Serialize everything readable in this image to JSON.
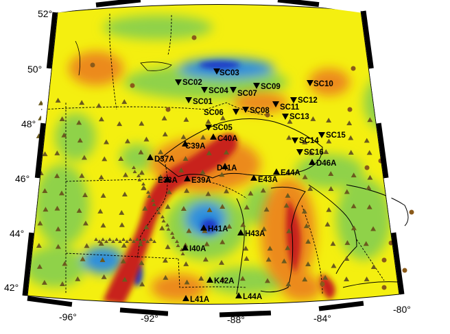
{
  "map": {
    "longitude_ticks": [
      "-96°",
      "-92°",
      "-88°",
      "-84°",
      "-80°"
    ],
    "latitude_ticks": [
      "52°",
      "50°",
      "48°",
      "46°",
      "44°",
      "42°"
    ],
    "colors": {
      "background": "#f4ef10",
      "high": "#c8201e",
      "mid_high": "#ec8a1c",
      "mid_low": "#8fd24a",
      "low": "#2d8fdc",
      "very_low": "#1b3ac8",
      "station_triangle": "#6b5a1e",
      "labeled_station": "#000000",
      "circle_station": "#8a5a1a"
    },
    "labeled_stations": [
      {
        "id": "SC03",
        "marker": "inverted-triangle"
      },
      {
        "id": "SC02",
        "marker": "inverted-triangle"
      },
      {
        "id": "SC04",
        "marker": "inverted-triangle"
      },
      {
        "id": "SC07",
        "marker": "inverted-triangle"
      },
      {
        "id": "SC09",
        "marker": "inverted-triangle"
      },
      {
        "id": "SC10",
        "marker": "inverted-triangle"
      },
      {
        "id": "SC01",
        "marker": "inverted-triangle"
      },
      {
        "id": "SC12",
        "marker": "inverted-triangle"
      },
      {
        "id": "SC11",
        "marker": "inverted-triangle"
      },
      {
        "id": "SC06",
        "marker": "inverted-triangle"
      },
      {
        "id": "SC08",
        "marker": "inverted-triangle"
      },
      {
        "id": "SC13",
        "marker": "inverted-triangle"
      },
      {
        "id": "SC05",
        "marker": "inverted-triangle"
      },
      {
        "id": "SC15",
        "marker": "inverted-triangle"
      },
      {
        "id": "SC14",
        "marker": "inverted-triangle"
      },
      {
        "id": "SC16",
        "marker": "inverted-triangle"
      },
      {
        "id": "C40A",
        "marker": "triangle"
      },
      {
        "id": "C39A",
        "marker": "triangle"
      },
      {
        "id": "D37A",
        "marker": "triangle"
      },
      {
        "id": "D41A",
        "marker": "triangle"
      },
      {
        "id": "D46A",
        "marker": "triangle"
      },
      {
        "id": "E44A",
        "marker": "triangle"
      },
      {
        "id": "E38A",
        "marker": "triangle"
      },
      {
        "id": "E39A",
        "marker": "triangle"
      },
      {
        "id": "E43A",
        "marker": "triangle"
      },
      {
        "id": "H41A",
        "marker": "triangle"
      },
      {
        "id": "H43A",
        "marker": "triangle"
      },
      {
        "id": "I40A",
        "marker": "triangle"
      },
      {
        "id": "K42A",
        "marker": "triangle"
      },
      {
        "id": "L41A",
        "marker": "triangle"
      },
      {
        "id": "L44A",
        "marker": "triangle"
      }
    ]
  }
}
